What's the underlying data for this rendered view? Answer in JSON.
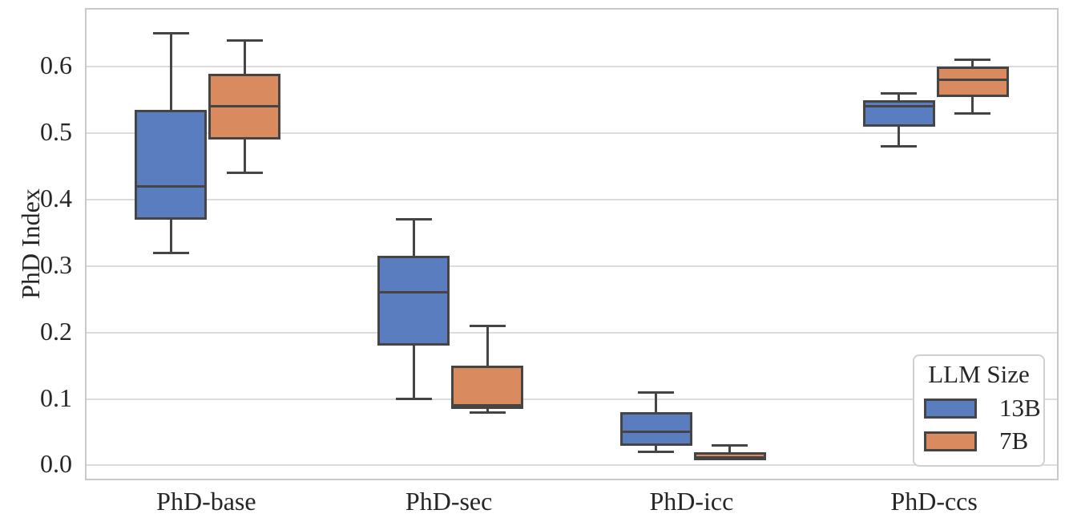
{
  "chart_data": {
    "type": "boxplot",
    "title": "",
    "xlabel": "",
    "ylabel": "PhD Index",
    "categories": [
      "PhD-base",
      "PhD-sec",
      "PhD-icc",
      "PhD-ccs"
    ],
    "yticks": [
      "0.0",
      "0.1",
      "0.2",
      "0.3",
      "0.4",
      "0.5",
      "0.6"
    ],
    "ylim": [
      -0.02,
      0.686
    ],
    "grid": "horizontal",
    "legend": {
      "title": "LLM Size",
      "position": "lower right",
      "items": [
        {
          "label": "13B",
          "color": "#597dbf"
        },
        {
          "label": "7B",
          "color": "#d98b5f"
        }
      ]
    },
    "series": [
      {
        "name": "13B",
        "color": "#597dbf",
        "boxes": [
          {
            "category": "PhD-base",
            "whisker_low": 0.32,
            "q1": 0.37,
            "median": 0.42,
            "q3": 0.535,
            "whisker_high": 0.65
          },
          {
            "category": "PhD-sec",
            "whisker_low": 0.1,
            "q1": 0.18,
            "median": 0.26,
            "q3": 0.315,
            "whisker_high": 0.37
          },
          {
            "category": "PhD-icc",
            "whisker_low": 0.02,
            "q1": 0.03,
            "median": 0.05,
            "q3": 0.08,
            "whisker_high": 0.11
          },
          {
            "category": "PhD-ccs",
            "whisker_low": 0.48,
            "q1": 0.51,
            "median": 0.54,
            "q3": 0.55,
            "whisker_high": 0.56
          }
        ]
      },
      {
        "name": "7B",
        "color": "#d98b5f",
        "boxes": [
          {
            "category": "PhD-base",
            "whisker_low": 0.44,
            "q1": 0.49,
            "median": 0.54,
            "q3": 0.59,
            "whisker_high": 0.64
          },
          {
            "category": "PhD-sec",
            "whisker_low": 0.08,
            "q1": 0.085,
            "median": 0.09,
            "q3": 0.15,
            "whisker_high": 0.21
          },
          {
            "category": "PhD-icc",
            "whisker_low": 0.01,
            "q1": 0.01,
            "median": 0.01,
            "q3": 0.02,
            "whisker_high": 0.03
          },
          {
            "category": "PhD-ccs",
            "whisker_low": 0.53,
            "q1": 0.555,
            "median": 0.58,
            "q3": 0.6,
            "whisker_high": 0.61
          }
        ]
      }
    ],
    "colors": {
      "box_edge": "#454545",
      "grid": "#dcdcdc",
      "spine": "#c9c9c9",
      "text": "#262626",
      "background": "#ffffff"
    }
  }
}
